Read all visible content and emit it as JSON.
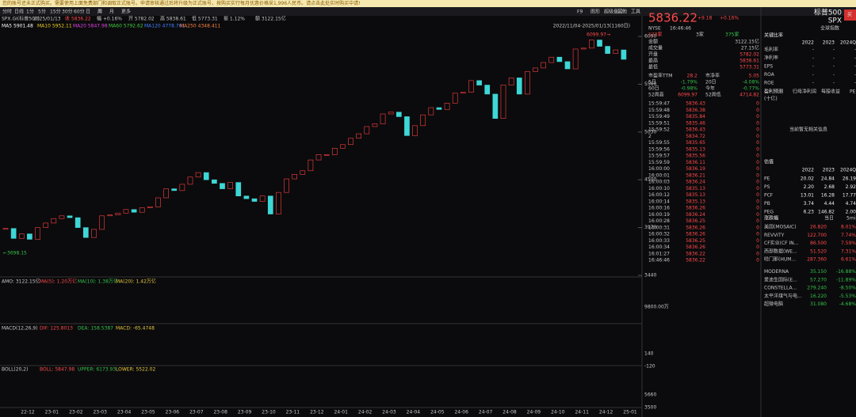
{
  "notice": "您的账号还未正式购买。需要使用上面免费部门和调取正式账号。申请审核通过后将升级为正式账号，按购买实行每月优惠价格采1,996人民币。请点击此处实时购买中请!",
  "toolbar": [
    "分时",
    "日线",
    "1分",
    "5分",
    "15分",
    "30分",
    "60分",
    "日",
    "周",
    "月",
    "更多"
  ],
  "top_right": [
    "F9",
    "图形",
    "超级盘口",
    "其他",
    "工具"
  ],
  "info": [
    "SPX.GI(标普500)",
    "2025/01/13",
    "收 5836.22",
    "幅 +0.16%",
    "开 5782.02",
    "高 5838.61",
    "低 5773.31",
    "振 1.12%",
    "额 3122.15亿"
  ],
  "ma_line": [
    "MA5 5901.48",
    "MA10 5952.11",
    "MA20 5847.98",
    "MA60 5792.62",
    "MA120 4778.761",
    "MA250 4348.411"
  ],
  "main": {
    "range": "2022/11/04-2025/01/13(1160日)",
    "high_label": "6099.97→",
    "low_label": "←3698.15",
    "ylim": [
      3440,
      6090
    ],
    "yticks": [
      6090,
      5560,
      5030,
      4500,
      3970,
      3440
    ],
    "closes": [
      3960,
      3850,
      3900,
      3840,
      3970,
      4020,
      4070,
      4100,
      4080,
      3970,
      3860,
      3950,
      4100,
      4110,
      4130,
      4170,
      4140,
      4190,
      4200,
      4300,
      4400,
      4380,
      4450,
      4530,
      4580,
      4500,
      4460,
      4400,
      4470,
      4320,
      4290,
      4260,
      4320,
      4120,
      4360,
      4510,
      4560,
      4600,
      4720,
      4780,
      4780,
      4850,
      4890,
      4960,
      5010,
      5090,
      5120,
      5230,
      5250,
      5200,
      4990,
      5100,
      5220,
      5300,
      5280,
      5350,
      5460,
      5470,
      5600,
      5550,
      5450,
      5180,
      5550,
      5630,
      5450,
      5700,
      5740,
      5800,
      5860,
      5810,
      5730,
      5950,
      5960,
      6050,
      5980,
      5900,
      5940,
      5836
    ],
    "months": [
      "22-12",
      "23-01",
      "23-02",
      "23-03",
      "23-04",
      "23-05",
      "23-06",
      "23-07",
      "23-08",
      "23-09",
      "23-10",
      "23-11",
      "23-12",
      "24-01",
      "24-02",
      "24-03",
      "24-04",
      "24-05",
      "24-06",
      "24-07",
      "24-08",
      "24-09",
      "24-10",
      "24-11",
      "24-12",
      "25-01"
    ]
  },
  "panels": [
    {
      "texts": [
        "AMO: 3122.15亿",
        "MA(5): 1.20万亿",
        "MA(10): 1.38万亿",
        "MA(20): 1.42万亿"
      ],
      "ticks": [
        "9800.00万"
      ]
    },
    {
      "texts": [
        "MACD(12,26,9)",
        "DIF: 125.8013",
        "DEA: 158.5387",
        "MACD: -65.4748"
      ],
      "ticks": [
        "140",
        "-120"
      ]
    },
    {
      "texts": [
        "BOLL(20,2)",
        "BOLL: 5847.98",
        "UPPER: 6173.93",
        "LOWER: 5522.02"
      ],
      "ticks": [
        "5660",
        "3500"
      ]
    }
  ],
  "quote": {
    "price": "5836.22",
    "change": "+9.18",
    "pct": "+0.16%",
    "exchange": "NYSE",
    "time": "16:46:46",
    "up": "123家",
    "flat": "3家",
    "down": "375家",
    "fields": [
      [
        "金额",
        "3122.15亿"
      ],
      [
        "成交量",
        "27.15亿"
      ],
      [
        "开盘",
        "5782.02"
      ],
      [
        "最高",
        "5838.61"
      ],
      [
        "最低",
        "5773.31"
      ]
    ],
    "pairs": [
      [
        "市盈率TTM",
        "28.2",
        "市净率",
        "5.05"
      ],
      [
        "5日",
        "-1.79%",
        "20日",
        "-4.08%"
      ],
      [
        "60日",
        "-0.98%",
        "今年",
        "-0.77%"
      ],
      [
        "52周高",
        "6099.97",
        "52周低",
        "4714.82"
      ]
    ]
  },
  "tape": [
    [
      "15:59:47",
      "5836.43",
      0
    ],
    [
      "15:59:48",
      "5836.38",
      0
    ],
    [
      "15:59:49",
      "5835.84",
      0
    ],
    [
      "15:59:51",
      "5835.46",
      0
    ],
    [
      "15:59:52",
      "5836.43",
      0
    ],
    [
      "2",
      "5834.72",
      0
    ],
    [
      "15:59:55",
      "5835.65",
      0
    ],
    [
      "15:59:56",
      "5835.13",
      0
    ],
    [
      "15:59:57",
      "5835.56",
      0
    ],
    [
      "15:59:59",
      "5836.11",
      0
    ],
    [
      "16:00:00",
      "5836.19",
      0
    ],
    [
      "16:00:01",
      "5836.21",
      0
    ],
    [
      "16:00:03",
      "5836.24",
      0
    ],
    [
      "16:00:10",
      "5835.13",
      0
    ],
    [
      "16:00:12",
      "5835.13",
      0
    ],
    [
      "16:00:14",
      "5835.13",
      0
    ],
    [
      "16:00:16",
      "5836.26",
      0
    ],
    [
      "16:00:19",
      "5836.24",
      0
    ],
    [
      "16:00:28",
      "5836.25",
      0
    ],
    [
      "16:00:31",
      "5836.26",
      0
    ],
    [
      "16:00:32",
      "5836.26",
      0
    ],
    [
      "16:00:33",
      "5836.25",
      0
    ],
    [
      "16:00:34",
      "5836.26",
      0
    ],
    [
      "16:01:27",
      "5836.22",
      0
    ],
    [
      "16:46:46",
      "5836.22",
      0
    ]
  ],
  "side": {
    "name": "标普500",
    "code": "SPX",
    "buy": "买",
    "sub": "全球指数",
    "ratio_title": "关键比率",
    "years": [
      "2022",
      "2023",
      "2024Q"
    ],
    "ratios": [
      [
        "毛利率",
        "-",
        "-",
        "-"
      ],
      [
        "净利率",
        "-",
        "-",
        "-"
      ],
      [
        "EPS",
        "-",
        "-",
        "-"
      ],
      [
        "ROA",
        "-",
        "-",
        "-"
      ],
      [
        "ROE",
        "-",
        "-",
        "-"
      ]
    ],
    "tabs": [
      "盈利预测",
      "归母净利润",
      "每股收益",
      "PE"
    ],
    "unit": "(十亿)",
    "empty": "当前暂无相关信息",
    "val_title": "估值",
    "val": [
      [
        "PE",
        "20.02",
        "24.84",
        "26.19"
      ],
      [
        "PS",
        "2.20",
        "2.68",
        "2.92"
      ],
      [
        "PCF",
        "13.01",
        "16.28",
        "17.77"
      ],
      [
        "PB",
        "3.74",
        "4.44",
        "4.74"
      ],
      [
        "PEG",
        "6.23",
        "146.82",
        "2.00"
      ]
    ],
    "mov_title": "涨跌幅",
    "mov_tabs": [
      "当日",
      "5min"
    ],
    "movers": [
      [
        "美国(MOSAIC)",
        "26.820",
        "8.01%"
      ],
      [
        "REVVITY",
        "122.700",
        "7.74%"
      ],
      [
        "CF实业(CF IN...",
        "86.500",
        "7.59%"
      ],
      [
        "西部数据(WE...",
        "51.520",
        "7.31%"
      ],
      [
        "哈门那(HUM...",
        "287.360",
        "6.61%"
      ],
      [
        "MODERNA",
        "35.150",
        "-16.88%"
      ],
      [
        "爱迪生国际(E...",
        "57.270",
        "-11.89%"
      ],
      [
        "CONSTELLA...",
        "279.240",
        "-8.50%"
      ],
      [
        "太平洋煤气与电...",
        "16.220",
        "-5.53%"
      ],
      [
        "超微电脑",
        "31.080",
        "-4.68%"
      ]
    ]
  }
}
